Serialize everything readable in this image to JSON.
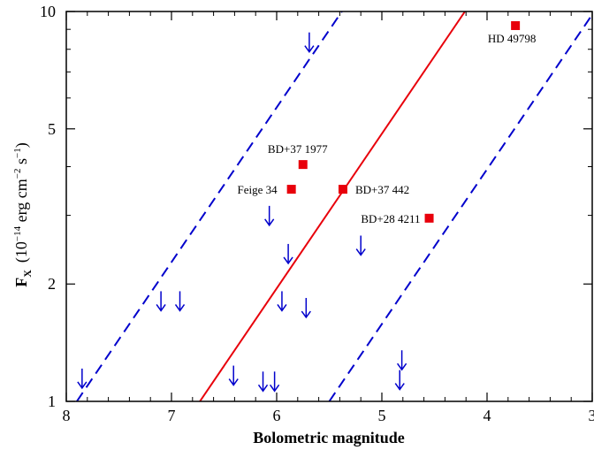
{
  "chart_data": {
    "type": "scatter",
    "xlabel": "Bolometric magnitude",
    "ylabel_main": "F",
    "ylabel_sub": "X",
    "ylabel_units": "(10",
    "ylabel_exp1": "−14",
    "ylabel_mid": " erg cm",
    "ylabel_exp2": "−2",
    "ylabel_mid2": " s",
    "ylabel_exp3": "−1",
    "ylabel_end": ")",
    "xlim": [
      8,
      3
    ],
    "ylim": [
      1,
      10
    ],
    "y_scale": "log",
    "x_ticks": [
      "8",
      "7",
      "6",
      "5",
      "4",
      "3"
    ],
    "y_ticks": [
      "1",
      "2",
      "5",
      "10"
    ],
    "detections": [
      {
        "name": "HD 49798",
        "x": 3.73,
        "y": 9.2
      },
      {
        "name": "BD+37 1977",
        "x": 5.75,
        "y": 4.05
      },
      {
        "name": "Feige 34",
        "x": 5.86,
        "y": 3.5
      },
      {
        "name": "BD+37 442",
        "x": 5.37,
        "y": 3.5
      },
      {
        "name": "BD+28 4211",
        "x": 4.55,
        "y": 2.95
      }
    ],
    "upper_limits": [
      {
        "x": 7.85,
        "y": 1.14
      },
      {
        "x": 7.1,
        "y": 1.8
      },
      {
        "x": 6.92,
        "y": 1.8
      },
      {
        "x": 6.41,
        "y": 1.16
      },
      {
        "x": 6.13,
        "y": 1.12
      },
      {
        "x": 6.02,
        "y": 1.12
      },
      {
        "x": 6.07,
        "y": 2.98
      },
      {
        "x": 5.95,
        "y": 1.8
      },
      {
        "x": 5.89,
        "y": 2.38
      },
      {
        "x": 5.72,
        "y": 1.73
      },
      {
        "x": 5.69,
        "y": 8.3
      },
      {
        "x": 5.2,
        "y": 2.5
      },
      {
        "x": 4.81,
        "y": 1.27
      },
      {
        "x": 4.83,
        "y": 1.13
      }
    ],
    "lines": [
      {
        "style": "solid",
        "color": "#e8000b",
        "points": [
          [
            6.73,
            1
          ],
          [
            4.21,
            10
          ]
        ]
      },
      {
        "style": "dashed",
        "color": "#0000cc",
        "points": [
          [
            7.9,
            1
          ],
          [
            5.38,
            10
          ]
        ]
      },
      {
        "style": "dashed",
        "color": "#0000cc",
        "points": [
          [
            5.5,
            1
          ],
          [
            2.98,
            10
          ]
        ]
      }
    ],
    "colors": {
      "detection": "#e8000b",
      "upper_limit": "#0000cc",
      "axes": "#000000"
    }
  }
}
